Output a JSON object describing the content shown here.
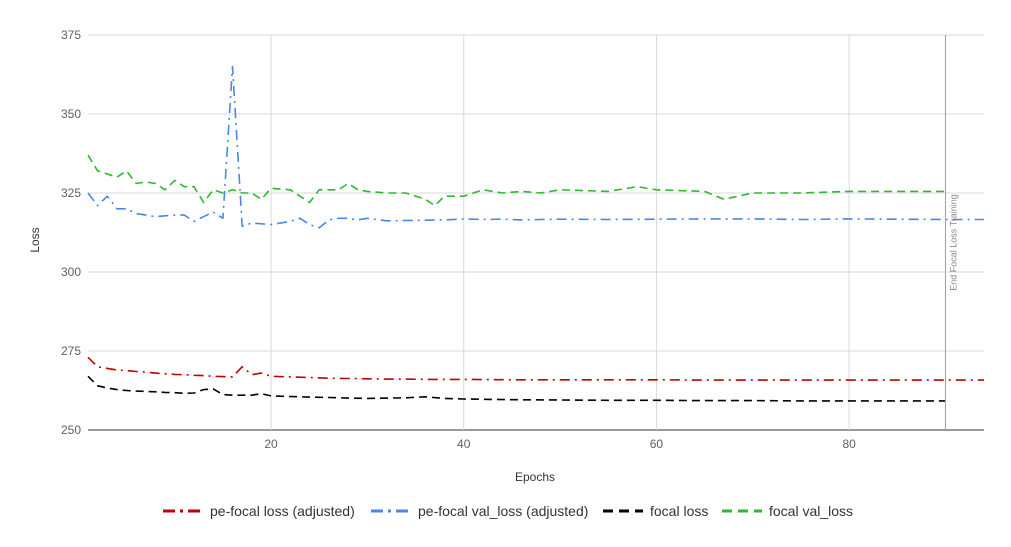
{
  "chart_data": {
    "type": "line",
    "xlabel": "Epochs",
    "ylabel": "Loss",
    "xlim": [
      1,
      94
    ],
    "ylim": [
      250,
      375
    ],
    "xticks": [
      20,
      40,
      60,
      80
    ],
    "yticks": [
      250,
      275,
      300,
      325,
      350,
      375
    ],
    "grid": true,
    "legend_position": "bottom",
    "annotation": {
      "x": 90,
      "text": "End Focal Loss Training"
    },
    "series": [
      {
        "name": "pe-focal loss (adjusted)",
        "color": "#c00000",
        "dash": "dashdot",
        "x": [
          1,
          2,
          3,
          4,
          5,
          6,
          7,
          8,
          9,
          10,
          11,
          12,
          13,
          14,
          15,
          16,
          17,
          18,
          19,
          20,
          22,
          24,
          26,
          28,
          30,
          32,
          34,
          36,
          38,
          40,
          45,
          50,
          55,
          60,
          65,
          70,
          75,
          80,
          85,
          90,
          94
        ],
        "y": [
          273,
          270,
          269.5,
          269,
          268.8,
          268.5,
          268.3,
          268,
          267.8,
          267.6,
          267.5,
          267.3,
          267.2,
          267,
          266.9,
          266.8,
          270,
          267.5,
          268,
          267,
          266.8,
          266.6,
          266.4,
          266.3,
          266.2,
          266.1,
          266.1,
          266,
          266,
          266,
          265.9,
          265.9,
          265.9,
          265.9,
          265.8,
          265.8,
          265.8,
          265.8,
          265.8,
          265.8,
          265.8
        ]
      },
      {
        "name": "pe-focal val_loss (adjusted)",
        "color": "#4a86e8",
        "dash": "dashdot",
        "x": [
          1,
          2,
          3,
          4,
          5,
          6,
          7,
          8,
          9,
          10,
          11,
          12,
          13,
          14,
          15,
          16,
          17,
          18,
          20,
          22,
          23,
          24,
          25,
          26,
          27,
          28,
          29,
          30,
          32,
          34,
          36,
          38,
          40,
          42,
          44,
          46,
          48,
          50,
          55,
          60,
          65,
          70,
          75,
          80,
          85,
          90,
          94
        ],
        "y": [
          325,
          321,
          324,
          320,
          320,
          318.5,
          318,
          317.5,
          317.8,
          318,
          318,
          316,
          317.5,
          319,
          317,
          365,
          314.5,
          315.5,
          315,
          316,
          317,
          315,
          314,
          316.5,
          317,
          317,
          316.5,
          317,
          316.2,
          316.3,
          316.4,
          316.5,
          316.8,
          316.6,
          316.7,
          316.5,
          316.6,
          316.7,
          316.6,
          316.7,
          316.8,
          316.8,
          316.6,
          316.8,
          316.7,
          316.6,
          316.6
        ]
      },
      {
        "name": "focal loss",
        "color": "#000000",
        "dash": "dash",
        "x": [
          1,
          2,
          3,
          4,
          5,
          6,
          7,
          8,
          9,
          10,
          11,
          12,
          13,
          14,
          15,
          16,
          17,
          18,
          19,
          20,
          22,
          24,
          26,
          28,
          30,
          32,
          34,
          36,
          38,
          40,
          45,
          50,
          55,
          60,
          65,
          70,
          75,
          80,
          85,
          90
        ],
        "y": [
          267,
          264,
          263.3,
          262.8,
          262.5,
          262.3,
          262.2,
          262.1,
          261.9,
          261.8,
          261.6,
          261.7,
          262.8,
          263,
          261.2,
          261,
          261,
          261,
          261.5,
          260.8,
          260.6,
          260.4,
          260.3,
          260.1,
          260,
          260.1,
          260.2,
          260.5,
          260,
          259.8,
          259.6,
          259.5,
          259.4,
          259.4,
          259.3,
          259.3,
          259.2,
          259.2,
          259.2,
          259.2
        ]
      },
      {
        "name": "focal val_loss",
        "color": "#2db82d",
        "dash": "dash",
        "x": [
          1,
          2,
          3,
          4,
          5,
          6,
          7,
          8,
          9,
          10,
          11,
          12,
          13,
          14,
          15,
          16,
          17,
          18,
          19,
          20,
          22,
          24,
          25,
          26,
          27,
          28,
          29,
          30,
          32,
          34,
          36,
          37,
          38,
          40,
          42,
          44,
          46,
          48,
          50,
          55,
          58,
          60,
          65,
          67,
          70,
          75,
          80,
          85,
          90
        ],
        "y": [
          337,
          332,
          331,
          330,
          332,
          328,
          328.5,
          328,
          326,
          329,
          327,
          327,
          322,
          326,
          325,
          326,
          325,
          325,
          323,
          326.5,
          326,
          322,
          326,
          326,
          326,
          328,
          326,
          325.5,
          325,
          325,
          323,
          321,
          324,
          324,
          326,
          325,
          325.5,
          325,
          326,
          325.5,
          327,
          326,
          325.5,
          323,
          325,
          325,
          325.5,
          325.5,
          325.5
        ]
      }
    ]
  }
}
